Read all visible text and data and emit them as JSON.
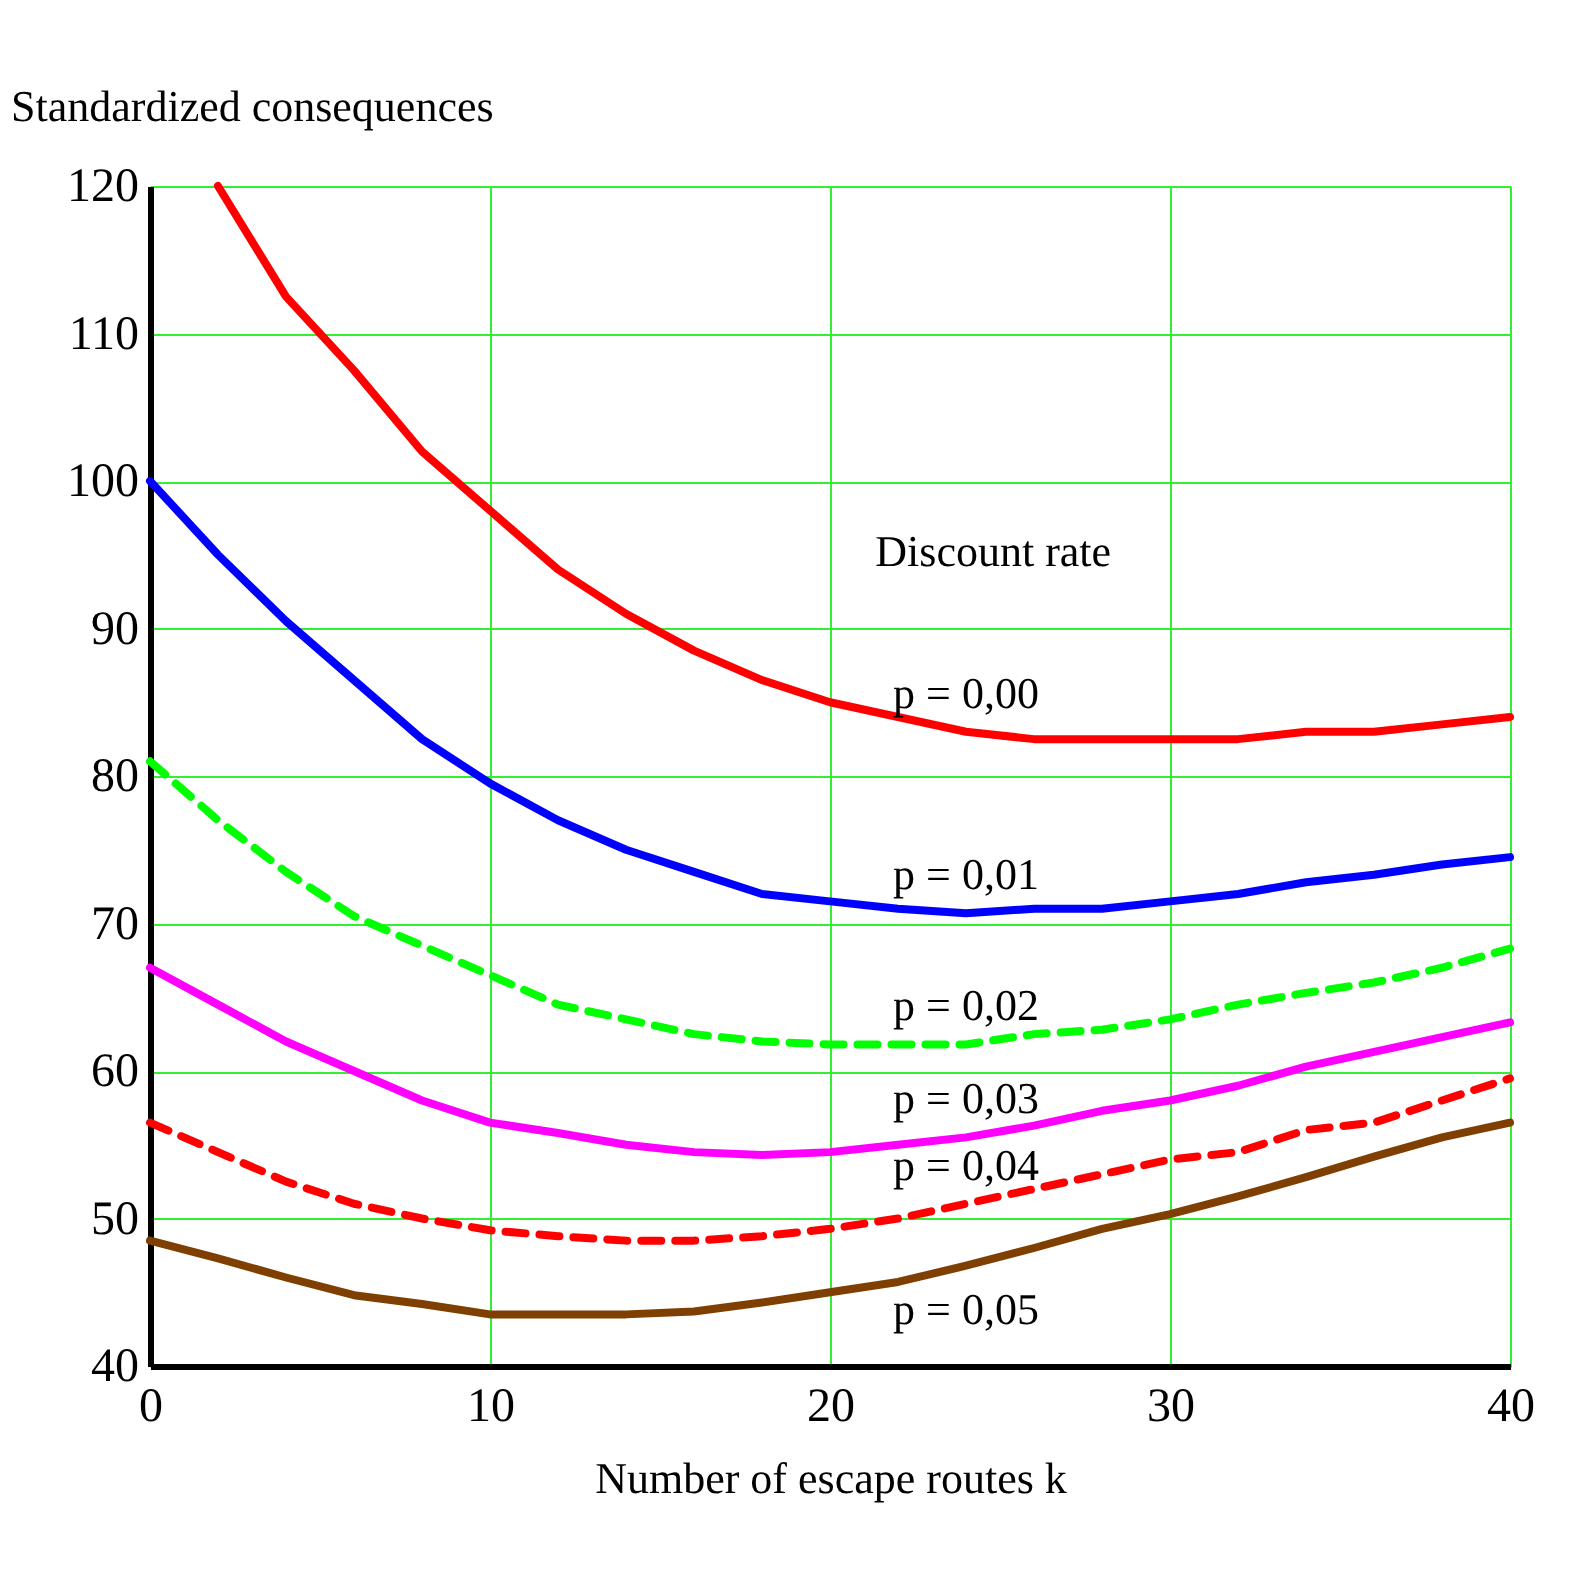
{
  "chart_data": {
    "type": "line",
    "xlabel": "Number of escape routes k",
    "ylabel": "Standardized consequences",
    "x": [
      0,
      2,
      4,
      6,
      8,
      10,
      12,
      14,
      16,
      18,
      20,
      22,
      24,
      26,
      28,
      30,
      32,
      34,
      36,
      38,
      40
    ],
    "series": [
      {
        "name": "p = 0,00",
        "color": "#ff0000",
        "line_style": "solid",
        "values": [
          null,
          120,
          112.5,
          107.5,
          102,
          98,
          94,
          91,
          88.5,
          86.5,
          85,
          84,
          83,
          82.5,
          82.5,
          82.5,
          82.5,
          83,
          83,
          83.5,
          84
        ]
      },
      {
        "name": "p = 0,01",
        "color": "#0000ff",
        "line_style": "solid",
        "values": [
          100,
          95,
          90.5,
          86.5,
          82.5,
          79.5,
          77,
          75,
          73.5,
          72,
          71.5,
          71,
          70.7,
          71,
          71,
          71.5,
          72,
          72.8,
          73.3,
          74,
          74.5
        ]
      },
      {
        "name": "p = 0,02",
        "color": "#00ff00",
        "line_style": "dashed",
        "values": [
          81,
          77,
          73.5,
          70.5,
          68.5,
          66.5,
          64.5,
          63.5,
          62.5,
          62,
          61.8,
          61.8,
          61.8,
          62.5,
          62.8,
          63.5,
          64.5,
          65.3,
          66,
          67,
          68.3
        ]
      },
      {
        "name": "p = 0,03",
        "color": "#ff00ff",
        "line_style": "solid",
        "values": [
          67,
          64.5,
          62,
          60,
          58,
          56.5,
          55.8,
          55,
          54.5,
          54.3,
          54.5,
          55,
          55.5,
          56.3,
          57.3,
          58,
          59,
          60.3,
          61.3,
          62.3,
          63.3
        ]
      },
      {
        "name": "p = 0,04",
        "color": "#ff0000",
        "line_style": "dashed",
        "values": [
          56.5,
          54.5,
          52.5,
          51,
          50,
          49.2,
          48.8,
          48.5,
          48.5,
          48.8,
          49.3,
          50,
          51,
          52,
          53,
          54,
          54.5,
          56,
          56.5,
          58,
          59.5
        ]
      },
      {
        "name": "p = 0,05",
        "color": "#7f3f00",
        "line_style": "solid",
        "values": [
          48.5,
          47.3,
          46,
          44.8,
          44.2,
          43.5,
          43.5,
          43.5,
          43.7,
          44.3,
          45,
          45.7,
          46.8,
          48,
          49.3,
          50.3,
          51.5,
          52.8,
          54.2,
          55.5,
          56.5
        ]
      }
    ],
    "annotations": [
      "Discount rate"
    ],
    "xlim": [
      0,
      40
    ],
    "xticks": [
      0,
      10,
      20,
      30,
      40
    ],
    "ylim": [
      40,
      120
    ],
    "yticks": [
      40,
      50,
      60,
      70,
      80,
      90,
      100,
      110,
      120
    ],
    "grid": true,
    "marker": "none"
  }
}
